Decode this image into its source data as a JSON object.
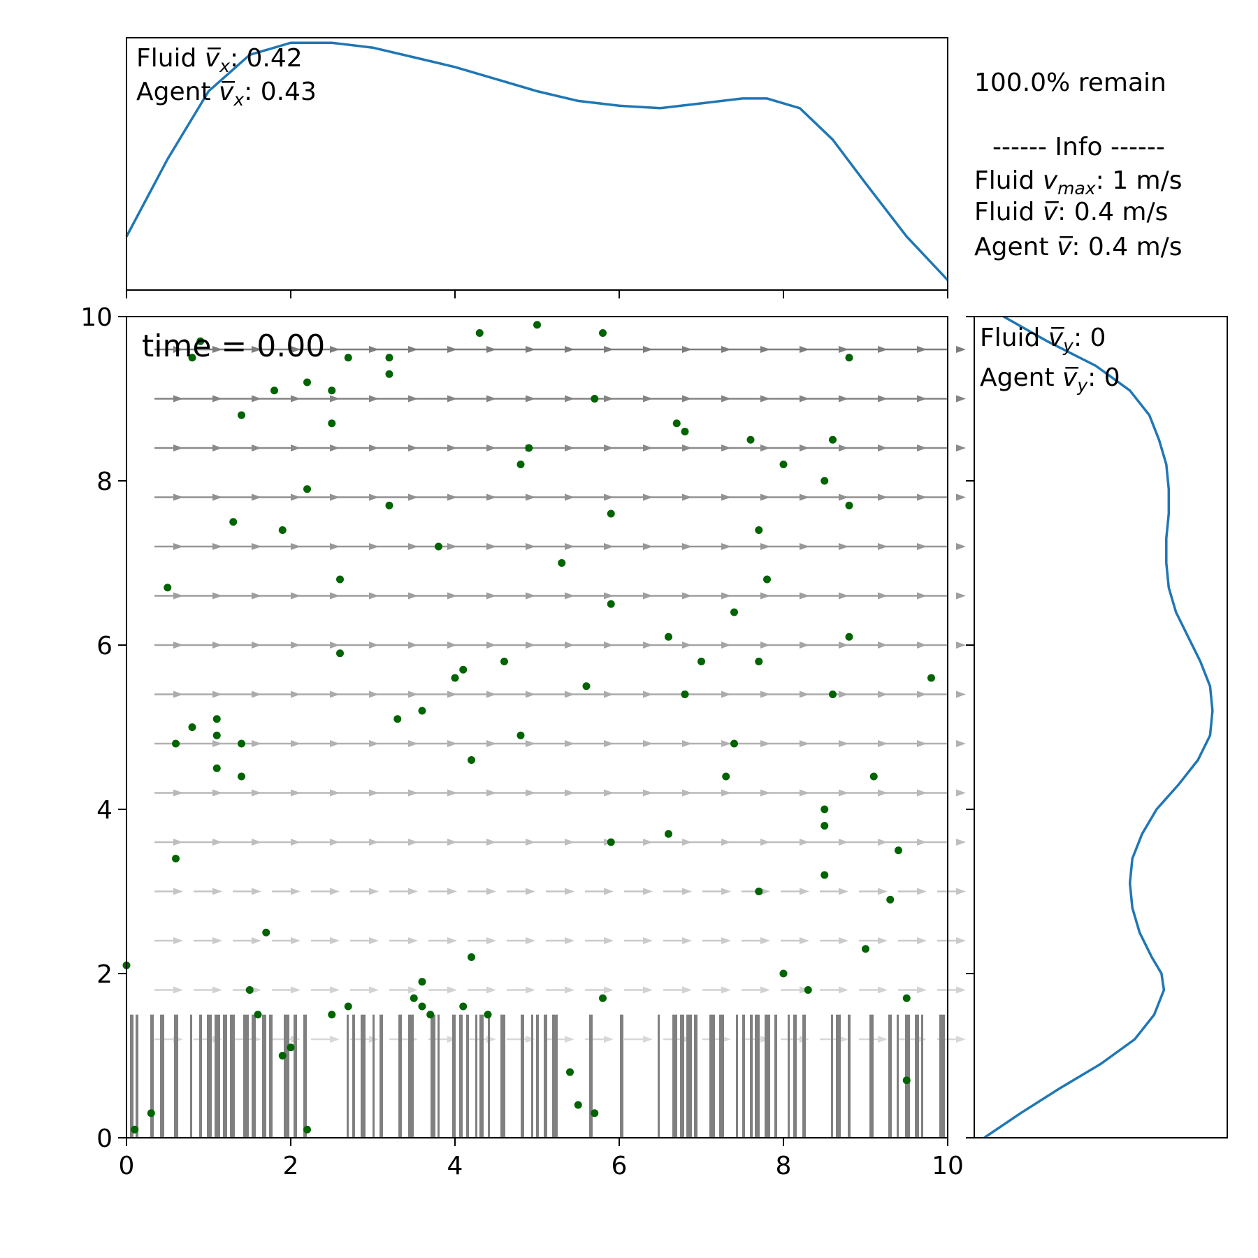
{
  "chart_data": [
    {
      "type": "line",
      "panel": "top marginal",
      "x": [
        0,
        0.5,
        1.0,
        1.5,
        2.0,
        2.5,
        3.0,
        3.5,
        4.0,
        4.5,
        5.0,
        5.5,
        6.0,
        6.5,
        7.0,
        7.5,
        7.8,
        8.2,
        8.6,
        9.0,
        9.5,
        10.0
      ],
      "y": [
        0.2,
        0.52,
        0.8,
        0.95,
        1.0,
        1.0,
        0.98,
        0.94,
        0.9,
        0.85,
        0.8,
        0.76,
        0.74,
        0.73,
        0.75,
        0.77,
        0.77,
        0.73,
        0.6,
        0.42,
        0.2,
        0.02
      ],
      "xlim": [
        0,
        10
      ],
      "color": "#1f77b4",
      "annotations": {
        "fluid_vx_label": "Fluid",
        "fluid_vx_value": ": 0.42",
        "agent_vx_label": "Agent",
        "agent_vx_value": ": 0.43"
      }
    },
    {
      "type": "line",
      "panel": "right marginal",
      "y": [
        0,
        0.3,
        0.6,
        0.9,
        1.2,
        1.5,
        1.8,
        2.0,
        2.2,
        2.5,
        2.8,
        3.1,
        3.4,
        3.7,
        4.0,
        4.3,
        4.6,
        4.9,
        5.2,
        5.5,
        5.8,
        6.1,
        6.4,
        6.7,
        7.0,
        7.3,
        7.6,
        7.9,
        8.2,
        8.5,
        8.8,
        9.1,
        9.4,
        9.7,
        10.0
      ],
      "x": [
        0.02,
        0.17,
        0.33,
        0.5,
        0.64,
        0.72,
        0.76,
        0.75,
        0.71,
        0.66,
        0.63,
        0.62,
        0.63,
        0.67,
        0.73,
        0.82,
        0.9,
        0.95,
        0.96,
        0.95,
        0.91,
        0.86,
        0.81,
        0.78,
        0.77,
        0.77,
        0.78,
        0.78,
        0.77,
        0.74,
        0.7,
        0.62,
        0.48,
        0.28,
        0.1
      ],
      "ylim": [
        0,
        10
      ],
      "color": "#1f77b4",
      "annotations": {
        "fluid_vy_label": "Fluid",
        "fluid_vy_value": ": 0",
        "agent_vy_label": "Agent",
        "agent_vy_value": ": 0"
      }
    },
    {
      "type": "scatter",
      "panel": "main",
      "xlim": [
        0,
        10
      ],
      "ylim": [
        0,
        10
      ],
      "xticks": [
        "0",
        "2",
        "4",
        "6",
        "8",
        "10"
      ],
      "yticks": [
        "0",
        "2",
        "4",
        "6",
        "8",
        "10"
      ],
      "annotation": "time = 0.00",
      "point_color": "#006400",
      "points": [
        [
          0.8,
          9.5
        ],
        [
          0.9,
          9.7
        ],
        [
          1.8,
          9.1
        ],
        [
          2.2,
          9.2
        ],
        [
          2.5,
          9.1
        ],
        [
          2.7,
          9.5
        ],
        [
          3.2,
          9.5
        ],
        [
          3.2,
          9.3
        ],
        [
          4.3,
          9.8
        ],
        [
          5.0,
          9.9
        ],
        [
          5.8,
          9.8
        ],
        [
          8.8,
          9.5
        ],
        [
          1.4,
          8.8
        ],
        [
          2.5,
          8.7
        ],
        [
          5.7,
          9.0
        ],
        [
          6.7,
          8.7
        ],
        [
          6.8,
          8.6
        ],
        [
          7.6,
          8.5
        ],
        [
          8.6,
          8.5
        ],
        [
          4.8,
          8.2
        ],
        [
          4.9,
          8.4
        ],
        [
          8.0,
          8.2
        ],
        [
          2.2,
          7.9
        ],
        [
          3.2,
          7.7
        ],
        [
          8.5,
          8.0
        ],
        [
          8.8,
          7.7
        ],
        [
          1.3,
          7.5
        ],
        [
          1.9,
          7.4
        ],
        [
          5.9,
          7.6
        ],
        [
          7.7,
          7.4
        ],
        [
          3.8,
          7.2
        ],
        [
          5.3,
          7.0
        ],
        [
          0.5,
          6.7
        ],
        [
          2.6,
          6.8
        ],
        [
          7.8,
          6.8
        ],
        [
          5.9,
          6.5
        ],
        [
          7.4,
          6.4
        ],
        [
          6.6,
          6.1
        ],
        [
          8.8,
          6.1
        ],
        [
          2.6,
          5.9
        ],
        [
          4.6,
          5.8
        ],
        [
          7.0,
          5.8
        ],
        [
          7.7,
          5.8
        ],
        [
          9.8,
          5.6
        ],
        [
          4.0,
          5.6
        ],
        [
          4.1,
          5.7
        ],
        [
          5.6,
          5.5
        ],
        [
          6.8,
          5.4
        ],
        [
          8.6,
          5.4
        ],
        [
          3.6,
          5.2
        ],
        [
          3.3,
          5.1
        ],
        [
          1.1,
          5.1
        ],
        [
          0.8,
          5.0
        ],
        [
          1.1,
          4.9
        ],
        [
          0.6,
          4.8
        ],
        [
          1.4,
          4.8
        ],
        [
          4.8,
          4.9
        ],
        [
          7.4,
          4.8
        ],
        [
          4.2,
          4.6
        ],
        [
          1.1,
          4.5
        ],
        [
          1.4,
          4.4
        ],
        [
          7.3,
          4.4
        ],
        [
          9.1,
          4.4
        ],
        [
          8.5,
          4.0
        ],
        [
          8.5,
          3.8
        ],
        [
          6.6,
          3.7
        ],
        [
          5.9,
          3.6
        ],
        [
          9.4,
          3.5
        ],
        [
          0.6,
          3.4
        ],
        [
          8.5,
          3.2
        ],
        [
          7.7,
          3.0
        ],
        [
          9.3,
          2.9
        ],
        [
          1.7,
          2.5
        ],
        [
          9.0,
          2.3
        ],
        [
          4.2,
          2.2
        ],
        [
          0.0,
          2.1
        ],
        [
          8.0,
          2.0
        ],
        [
          3.6,
          1.9
        ],
        [
          1.5,
          1.8
        ],
        [
          8.3,
          1.8
        ],
        [
          3.5,
          1.7
        ],
        [
          5.8,
          1.7
        ],
        [
          9.5,
          1.7
        ],
        [
          3.6,
          1.6
        ],
        [
          4.1,
          1.6
        ],
        [
          2.7,
          1.6
        ],
        [
          1.6,
          1.5
        ],
        [
          2.5,
          1.5
        ],
        [
          3.7,
          1.5
        ],
        [
          4.4,
          1.5
        ],
        [
          2.0,
          1.1
        ],
        [
          1.9,
          1.0
        ],
        [
          5.4,
          0.8
        ],
        [
          9.5,
          0.7
        ],
        [
          5.5,
          0.4
        ],
        [
          5.7,
          0.3
        ],
        [
          0.3,
          0.3
        ],
        [
          0.1,
          0.1
        ],
        [
          2.2,
          0.1
        ]
      ]
    }
  ],
  "info": {
    "remain": "100.0% remain",
    "header": "------ Info ------",
    "fluid_vmax_label": "Fluid",
    "fluid_vmax_value": ": 1 m/s",
    "fluid_vbar_label": "Fluid",
    "fluid_vbar_value": ": 0.4 m/s",
    "agent_vbar_label": "Agent",
    "agent_vbar_value": ": 0.4 m/s"
  }
}
